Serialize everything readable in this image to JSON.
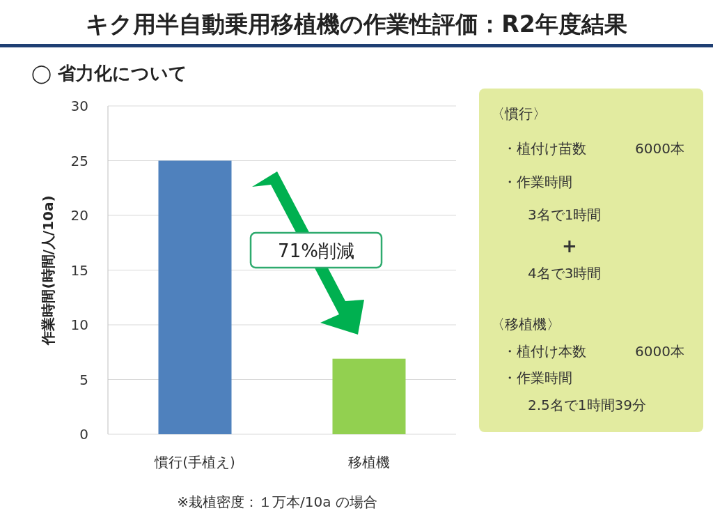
{
  "chart_data": [
    {
      "type": "bar",
      "title": "キク用半自動乗用移植機の作業性評価：R2年度結果",
      "subtitle": "◯ 省力化について",
      "ylabel": "作業時間(時間/人/10a)",
      "categories": [
        "慣行(手植え)",
        "移植機"
      ],
      "values": [
        25,
        6.9
      ],
      "colors": [
        "#4f81bd",
        "#92d050"
      ],
      "ylim": [
        0,
        30
      ],
      "yticks": [
        0,
        5,
        10,
        15,
        20,
        25,
        30
      ],
      "grid": "y",
      "annotations": [
        "71%削減",
        "※栽植密度：１万本/10a の場合"
      ]
    },
    {
      "type": "other",
      "annotations": [
        "〈慣行〉",
        "・植付け苗数",
        "6000本",
        "・作業時間",
        "3名で1時間",
        "+",
        "4名で3時間",
        "〈移植機〉",
        "・植付け本数",
        "6000本",
        "・作業時間",
        "2.5名で1時間39分"
      ]
    }
  ]
}
